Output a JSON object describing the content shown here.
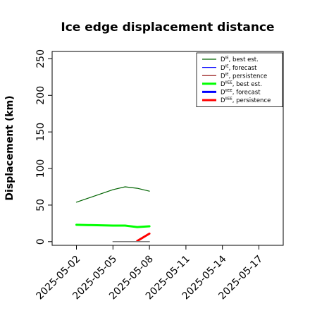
{
  "chart_data": {
    "type": "line",
    "title": "Ice edge displacement distance",
    "xlabel": "",
    "ylabel": "Displacement (km)",
    "xlim": [
      "2025-04-30",
      "2025-05-19"
    ],
    "ylim": [
      -5,
      260
    ],
    "yticks": [
      0,
      50,
      100,
      150,
      200,
      250
    ],
    "xticks": [
      "2025-05-02",
      "2025-05-05",
      "2025-05-08",
      "2025-05-11",
      "2025-05-14",
      "2025-05-17"
    ],
    "highlight_tick": "2025-05-08",
    "highlight_color": "#228B22",
    "legend_position": "top-right",
    "grid": false,
    "series": [
      {
        "name_main": "D",
        "name_sup": "IE",
        "name_rest": ", best est.",
        "color": "#006400",
        "width": 1.2,
        "x": [
          "2025-05-02",
          "2025-05-05",
          "2025-05-06",
          "2025-05-07",
          "2025-05-08"
        ],
        "y": [
          54,
          71,
          75,
          73,
          69
        ]
      },
      {
        "name_main": "D",
        "name_sup": "IE",
        "name_rest": ", forecast",
        "color": "#0000ff",
        "width": 1.2,
        "x": [],
        "y": []
      },
      {
        "name_main": "D",
        "name_sup": "IE",
        "name_rest": ", persistence",
        "color": "#8b0000",
        "width": 1.2,
        "x": [],
        "y": []
      },
      {
        "name_main": "D",
        "name_sup": "IIEE",
        "name_rest": ", best est.",
        "color": "#00ff00",
        "width": 3,
        "x": [
          "2025-05-02",
          "2025-05-05",
          "2025-05-06",
          "2025-05-07",
          "2025-05-08"
        ],
        "y": [
          23,
          22,
          22,
          20,
          21
        ]
      },
      {
        "name_main": "D",
        "name_sup": "IIEE",
        "name_rest": ", forecast",
        "color": "#0000ff",
        "width": 3,
        "x": [],
        "y": []
      },
      {
        "name_main": "D",
        "name_sup": "IIEE",
        "name_rest": ", persistence",
        "color": "#ff0000",
        "width": 3,
        "x": [
          "2025-05-07",
          "2025-05-08"
        ],
        "y": [
          1,
          11
        ]
      },
      {
        "name_main": "",
        "name_sup": "",
        "name_rest": "",
        "color": "#808080",
        "width": 1.5,
        "in_legend": false,
        "x": [
          "2025-05-05",
          "2025-05-08"
        ],
        "y": [
          0,
          0
        ]
      }
    ]
  }
}
